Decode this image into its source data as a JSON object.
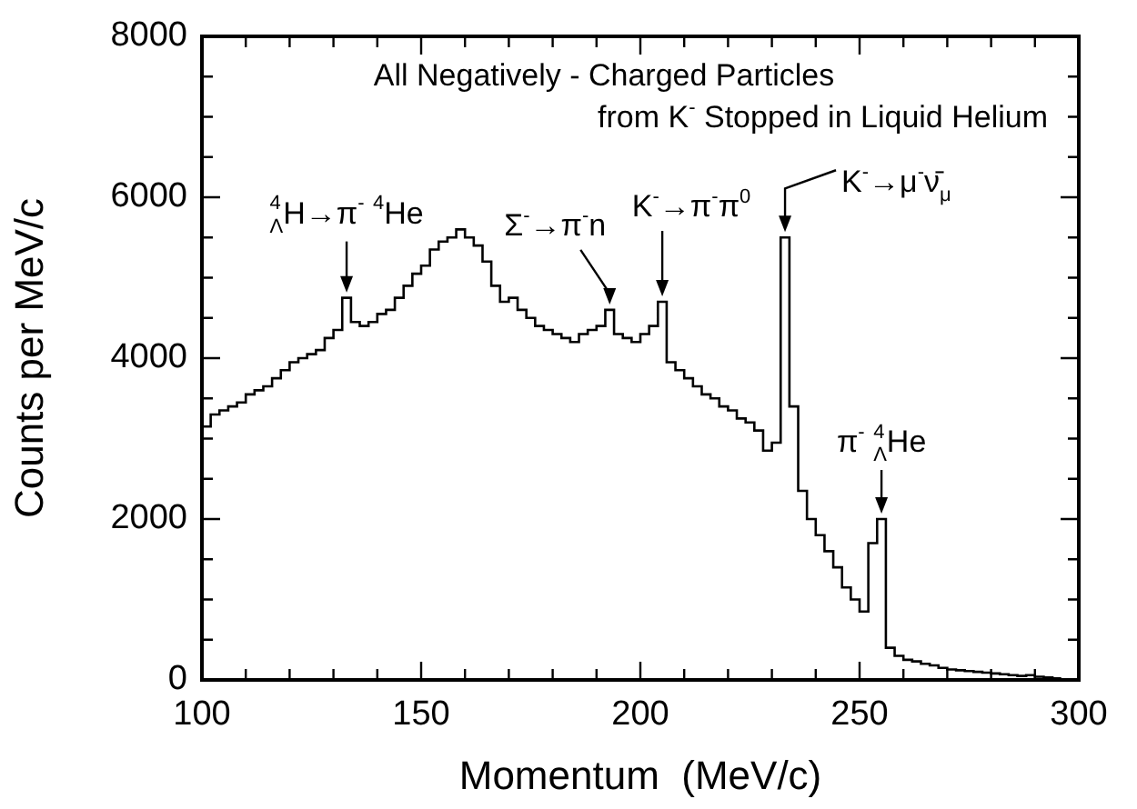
{
  "chart_data": {
    "type": "histogram",
    "title": "All Negatively - Charged Particles",
    "subtitle": "from K$^{-}$ Stopped in Liquid Helium",
    "xlabel": "Momentum  (MeV/c)",
    "ylabel": "Counts per MeV/c",
    "bins": [
      100,
      102,
      104,
      106,
      108,
      110,
      112,
      114,
      116,
      118,
      120,
      122,
      124,
      126,
      128,
      130,
      132,
      134,
      136,
      138,
      140,
      142,
      144,
      146,
      148,
      150,
      152,
      154,
      156,
      158,
      160,
      162,
      164,
      166,
      168,
      170,
      172,
      174,
      176,
      178,
      180,
      182,
      184,
      186,
      188,
      190,
      192,
      194,
      196,
      198,
      200,
      202,
      204,
      206,
      208,
      210,
      212,
      214,
      216,
      218,
      220,
      222,
      224,
      226,
      228,
      230,
      232,
      234,
      236,
      238,
      240,
      242,
      244,
      246,
      248,
      250,
      252,
      254,
      256,
      258,
      260,
      262,
      264,
      266,
      268,
      270,
      272,
      274,
      276,
      278,
      280,
      282,
      284,
      286,
      288,
      290,
      292,
      294,
      296
    ],
    "values": [
      3150,
      3300,
      3350,
      3400,
      3450,
      3550,
      3600,
      3650,
      3750,
      3850,
      3950,
      4000,
      4050,
      4100,
      4250,
      4350,
      4750,
      4450,
      4400,
      4450,
      4550,
      4600,
      4750,
      4900,
      5050,
      5150,
      5350,
      5450,
      5500,
      5600,
      5500,
      5400,
      5200,
      4900,
      4700,
      4750,
      4600,
      4500,
      4400,
      4350,
      4300,
      4250,
      4200,
      4300,
      4350,
      4400,
      4600,
      4300,
      4250,
      4200,
      4300,
      4400,
      4700,
      3950,
      3850,
      3750,
      3650,
      3550,
      3500,
      3400,
      3350,
      3250,
      3200,
      3100,
      2850,
      2950,
      5500,
      3400,
      2350,
      2000,
      1800,
      1600,
      1400,
      1150,
      1000,
      850,
      1700,
      2000,
      400,
      300,
      250,
      230,
      200,
      180,
      150,
      130,
      120,
      110,
      100,
      90,
      80,
      70,
      60,
      50,
      60,
      40,
      30,
      20
    ],
    "color": "#000000",
    "xlim": [
      100,
      300
    ],
    "xticks": [
      100,
      {
        "value": 110,
        "label": null
      },
      {
        "value": 120,
        "label": null
      },
      {
        "value": 130,
        "label": null
      },
      {
        "value": 140,
        "label": null
      },
      150,
      {
        "value": 160,
        "label": null
      },
      {
        "value": 170,
        "label": null
      },
      {
        "value": 180,
        "label": null
      },
      {
        "value": 190,
        "label": null
      },
      200,
      {
        "value": 210,
        "label": null
      },
      {
        "value": 220,
        "label": null
      },
      {
        "value": 230,
        "label": null
      },
      {
        "value": 240,
        "label": null
      },
      250,
      {
        "value": 260,
        "label": null
      },
      {
        "value": 270,
        "label": null
      },
      {
        "value": 280,
        "label": null
      },
      {
        "value": 290,
        "label": null
      },
      300
    ],
    "ylim": [
      0,
      8000
    ],
    "yticks": [
      0,
      {
        "value": 500,
        "label": null
      },
      {
        "value": 1000,
        "label": null
      },
      {
        "value": 1500,
        "label": null
      },
      2000,
      {
        "value": 2500,
        "label": null
      },
      {
        "value": 3000,
        "label": null
      },
      {
        "value": 3500,
        "label": null
      },
      4000,
      {
        "value": 4500,
        "label": null
      },
      {
        "value": 5000,
        "label": null
      },
      {
        "value": 5500,
        "label": null
      },
      6000,
      {
        "value": 6500,
        "label": null
      },
      {
        "value": 7000,
        "label": null
      },
      {
        "value": 7500,
        "label": null
      },
      8000
    ],
    "annotations": [
      {
        "text": "$^{4}$$_{Λ}$H→π$^{-}$ $^{4}$He",
        "x": 133,
        "y": 4750
      },
      {
        "text": "Σ$^{-}$→π$^{-}$n",
        "x": 193,
        "y": 4600
      },
      {
        "text": "K$^{-}$→π$^{-}$π$^{0}$",
        "x": 205,
        "y": 4700
      },
      {
        "text": "K$^{-}$→μ$^{-}$ν̄$_{μ}$",
        "x": 233,
        "y": 5500
      },
      {
        "text": "π$^{-}$ $^{4}$$_{Λ}$He",
        "x": 255,
        "y": 2000
      }
    ],
    "grid": false,
    "legend": false
  }
}
